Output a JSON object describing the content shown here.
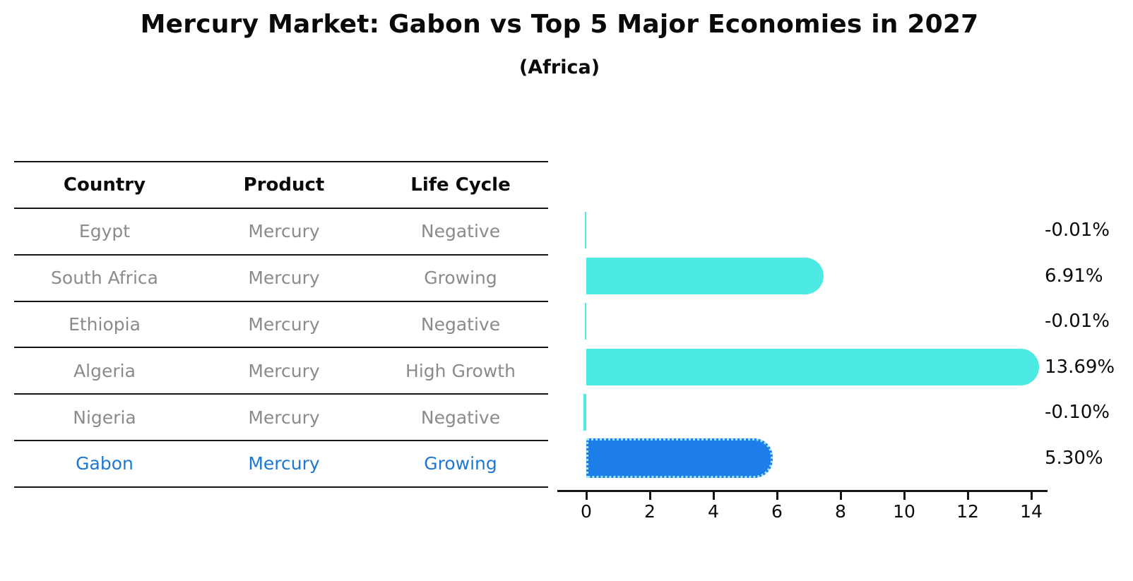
{
  "title": "Mercury Market: Gabon vs Top 5 Major Economies in 2027",
  "subtitle": "(Africa)",
  "table": {
    "headers": [
      "Country",
      "Product",
      "Life Cycle"
    ],
    "rows": [
      {
        "country": "Egypt",
        "product": "Mercury",
        "life_cycle": "Negative",
        "highlight": false
      },
      {
        "country": "South Africa",
        "product": "Mercury",
        "life_cycle": "Growing",
        "highlight": false
      },
      {
        "country": "Ethiopia",
        "product": "Mercury",
        "life_cycle": "Negative",
        "highlight": false
      },
      {
        "country": "Algeria",
        "product": "Mercury",
        "life_cycle": "High Growth",
        "highlight": false
      },
      {
        "country": "Nigeria",
        "product": "Mercury",
        "life_cycle": "Negative",
        "highlight": false
      },
      {
        "country": "Gabon",
        "product": "Mercury",
        "life_cycle": "Growing",
        "highlight": true
      }
    ]
  },
  "chart_data": {
    "type": "bar",
    "orientation": "horizontal",
    "title": "Mercury Market: Gabon vs Top 5 Major Economies in 2027",
    "subtitle": "(Africa)",
    "categories": [
      "Egypt",
      "South Africa",
      "Ethiopia",
      "Algeria",
      "Nigeria",
      "Gabon"
    ],
    "values": [
      -0.01,
      6.91,
      -0.01,
      13.69,
      -0.1,
      5.3
    ],
    "value_labels": [
      "-0.01%",
      "6.91%",
      "-0.01%",
      "13.69%",
      "-0.10%",
      "5.30%"
    ],
    "x_ticks": [
      "0",
      "2",
      "4",
      "6",
      "8",
      "10",
      "12",
      "14"
    ],
    "xlim": [
      0,
      14
    ],
    "grid": false,
    "legend": false,
    "bar_color": "#4de9e3",
    "highlight_color": "#1e7ee9",
    "highlight_index": 5,
    "highlight_text_color": "#1e78d2"
  }
}
